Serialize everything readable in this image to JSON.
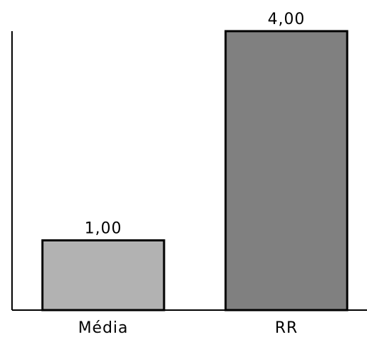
{
  "chart_data": {
    "type": "bar",
    "categories": [
      "Média",
      "RR"
    ],
    "values": [
      1.0,
      4.0
    ],
    "value_labels": [
      "1,00",
      "4,00"
    ],
    "bar_colors": [
      "#b2b2b2",
      "#808080"
    ],
    "ylim": [
      0,
      4.35
    ],
    "grid": false,
    "legend": "none",
    "title": "",
    "xlabel": "",
    "ylabel": ""
  }
}
